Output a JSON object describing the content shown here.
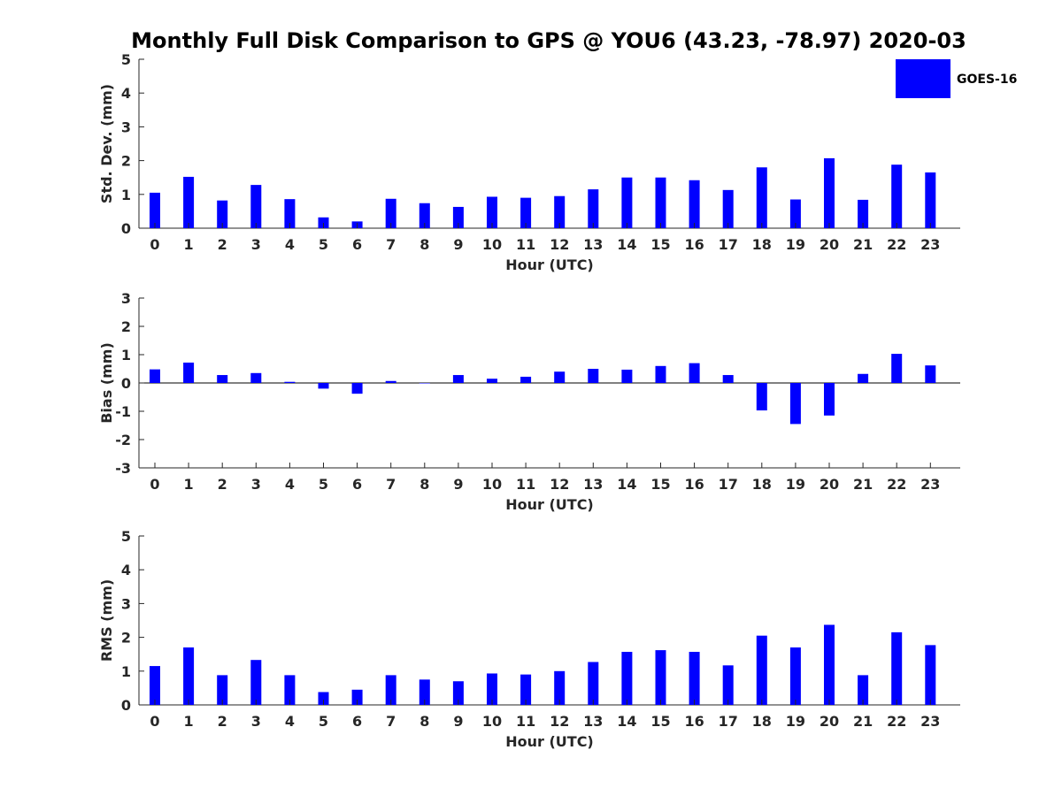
{
  "title": "Monthly Full Disk Comparison to GPS @ YOU6 (43.23, -78.97) 2020-03",
  "legend": {
    "label": "GOES-16",
    "color": "#0000ff"
  },
  "colors": {
    "bar": "#0000ff",
    "axis": "#262626",
    "zero_line": "#000000"
  },
  "chart_data": [
    {
      "type": "bar",
      "name": "std-dev",
      "categories": [
        "0",
        "1",
        "2",
        "3",
        "4",
        "5",
        "6",
        "7",
        "8",
        "9",
        "10",
        "11",
        "12",
        "13",
        "14",
        "15",
        "16",
        "17",
        "18",
        "19",
        "20",
        "21",
        "22",
        "23"
      ],
      "series": [
        {
          "name": "GOES-16",
          "values": [
            1.05,
            1.52,
            0.82,
            1.28,
            0.86,
            0.32,
            0.2,
            0.87,
            0.74,
            0.63,
            0.93,
            0.9,
            0.95,
            1.15,
            1.5,
            1.5,
            1.42,
            1.13,
            1.8,
            0.85,
            2.07,
            0.84,
            1.88,
            1.65
          ]
        }
      ],
      "xlabel": "Hour (UTC)",
      "ylabel": "Std. Dev. (mm)",
      "ylim": [
        0,
        5
      ],
      "yticks": [
        "0",
        "1",
        "2",
        "3",
        "4",
        "5"
      ],
      "legend": "top-right"
    },
    {
      "type": "bar",
      "name": "bias",
      "categories": [
        "0",
        "1",
        "2",
        "3",
        "4",
        "5",
        "6",
        "7",
        "8",
        "9",
        "10",
        "11",
        "12",
        "13",
        "14",
        "15",
        "16",
        "17",
        "18",
        "19",
        "20",
        "21",
        "22",
        "23"
      ],
      "series": [
        {
          "name": "GOES-16",
          "values": [
            0.48,
            0.72,
            0.28,
            0.35,
            0.04,
            -0.2,
            -0.38,
            0.07,
            0.0,
            0.28,
            0.15,
            0.22,
            0.4,
            0.5,
            0.47,
            0.6,
            0.7,
            0.28,
            -0.97,
            -1.45,
            -1.15,
            0.32,
            1.03,
            0.62
          ]
        }
      ],
      "xlabel": "Hour (UTC)",
      "ylabel": "Bias (mm)",
      "ylim": [
        -3,
        3
      ],
      "yticks": [
        "-3",
        "-2",
        "-1",
        "0",
        "1",
        "2",
        "3"
      ]
    },
    {
      "type": "bar",
      "name": "rms",
      "categories": [
        "0",
        "1",
        "2",
        "3",
        "4",
        "5",
        "6",
        "7",
        "8",
        "9",
        "10",
        "11",
        "12",
        "13",
        "14",
        "15",
        "16",
        "17",
        "18",
        "19",
        "20",
        "21",
        "22",
        "23"
      ],
      "series": [
        {
          "name": "GOES-16",
          "values": [
            1.15,
            1.7,
            0.88,
            1.33,
            0.88,
            0.38,
            0.45,
            0.88,
            0.75,
            0.7,
            0.93,
            0.9,
            1.0,
            1.27,
            1.57,
            1.62,
            1.57,
            1.17,
            2.05,
            1.7,
            2.37,
            0.88,
            2.15,
            1.77
          ]
        }
      ],
      "xlabel": "Hour (UTC)",
      "ylabel": "RMS (mm)",
      "ylim": [
        0,
        5
      ],
      "yticks": [
        "0",
        "1",
        "2",
        "3",
        "4",
        "5"
      ]
    }
  ]
}
